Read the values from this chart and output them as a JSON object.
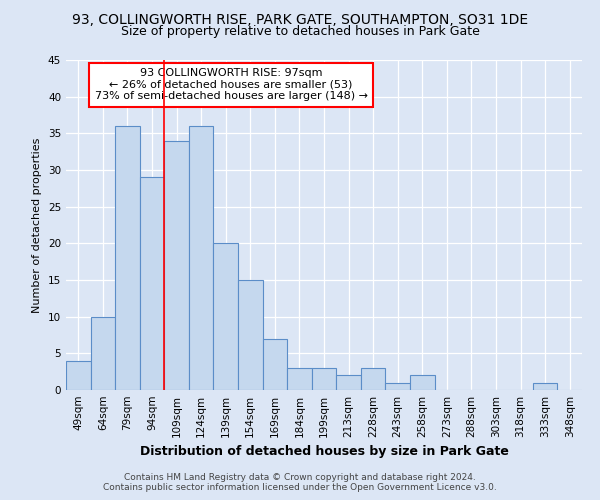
{
  "title": "93, COLLINGWORTH RISE, PARK GATE, SOUTHAMPTON, SO31 1DE",
  "subtitle": "Size of property relative to detached houses in Park Gate",
  "xlabel": "Distribution of detached houses by size in Park Gate",
  "ylabel": "Number of detached properties",
  "categories": [
    "49sqm",
    "64sqm",
    "79sqm",
    "94sqm",
    "109sqm",
    "124sqm",
    "139sqm",
    "154sqm",
    "169sqm",
    "184sqm",
    "199sqm",
    "213sqm",
    "228sqm",
    "243sqm",
    "258sqm",
    "273sqm",
    "288sqm",
    "303sqm",
    "318sqm",
    "333sqm",
    "348sqm"
  ],
  "values": [
    4,
    10,
    36,
    29,
    34,
    36,
    20,
    15,
    7,
    3,
    3,
    2,
    3,
    1,
    2,
    0,
    0,
    0,
    0,
    1,
    0
  ],
  "bar_color": "#c5d8ee",
  "bar_edge_color": "#5b8dc8",
  "ylim": [
    0,
    45
  ],
  "yticks": [
    0,
    5,
    10,
    15,
    20,
    25,
    30,
    35,
    40,
    45
  ],
  "property_line_x": 3.5,
  "annotation_line1": "93 COLLINGWORTH RISE: 97sqm",
  "annotation_line2": "← 26% of detached houses are smaller (53)",
  "annotation_line3": "73% of semi-detached houses are larger (148) →",
  "footer_line1": "Contains HM Land Registry data © Crown copyright and database right 2024.",
  "footer_line2": "Contains public sector information licensed under the Open Government Licence v3.0.",
  "bg_color": "#dce6f5",
  "plot_bg_color": "#dce6f5",
  "grid_color": "#ffffff",
  "title_fontsize": 10,
  "subtitle_fontsize": 9,
  "xlabel_fontsize": 9,
  "ylabel_fontsize": 8,
  "tick_fontsize": 7.5,
  "footer_fontsize": 6.5
}
